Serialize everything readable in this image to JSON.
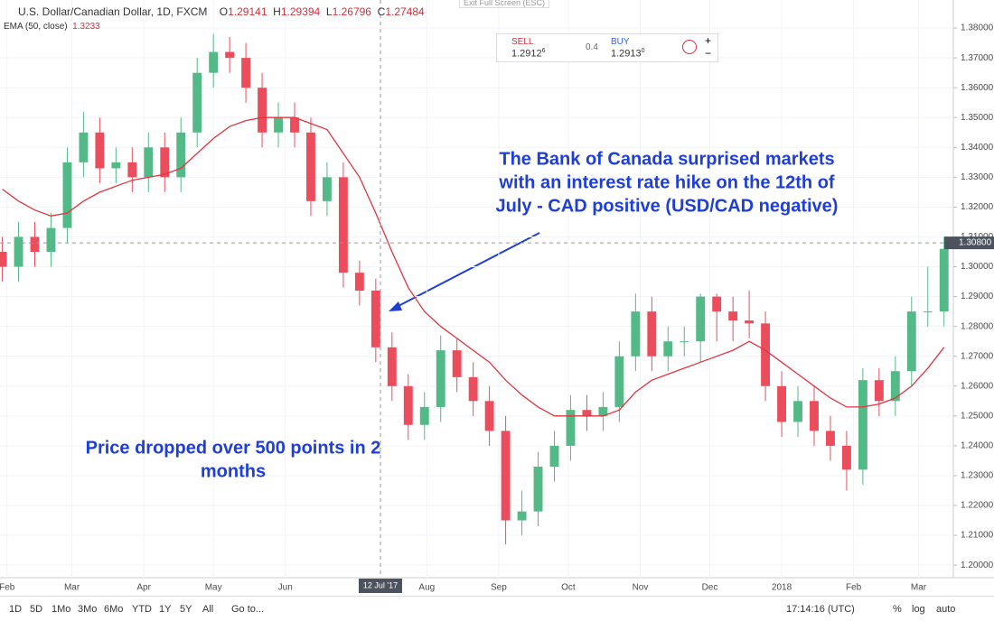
{
  "header": {
    "symbol": "U.S. Dollar/Canadian Dollar, 1D, FXCM",
    "o_label": "O",
    "o": "1.29141",
    "h_label": "H",
    "h": "1.29394",
    "l_label": "L",
    "l": "1.26796",
    "c_label": "C",
    "c": "1.27484",
    "indicator": "EMA (50, close)",
    "indicator_value": "1.3233",
    "exit": "Exit Full Screen (ESC)"
  },
  "trade": {
    "sell_label": "SELL",
    "sell_price": "1.2912",
    "sell_pip": "6",
    "spread": "0.4",
    "buy_label": "BUY",
    "buy_price": "1.2913",
    "buy_pip": "0",
    "plus": "+",
    "minus": "−"
  },
  "toolbar": {
    "ranges": [
      "1D",
      "5D",
      "1Mo",
      "3Mo",
      "6Mo",
      "YTD",
      "1Y",
      "5Y",
      "All"
    ],
    "goto": "Go to...",
    "clock": "17:14:16 (UTC)",
    "percent": "%",
    "log": "log",
    "auto": "auto"
  },
  "chart_data": {
    "type": "candlestick",
    "x": [
      "2017-01-30",
      "2017-02-06",
      "2017-02-13",
      "2017-02-20",
      "2017-02-27",
      "2017-03-06",
      "2017-03-13",
      "2017-03-20",
      "2017-03-27",
      "2017-04-03",
      "2017-04-10",
      "2017-04-17",
      "2017-04-24",
      "2017-05-01",
      "2017-05-08",
      "2017-05-15",
      "2017-05-22",
      "2017-05-29",
      "2017-06-05",
      "2017-06-12",
      "2017-06-19",
      "2017-06-26",
      "2017-07-03",
      "2017-07-10",
      "2017-07-17",
      "2017-07-24",
      "2017-07-31",
      "2017-08-07",
      "2017-08-14",
      "2017-08-21",
      "2017-08-28",
      "2017-09-04",
      "2017-09-11",
      "2017-09-18",
      "2017-09-25",
      "2017-10-02",
      "2017-10-09",
      "2017-10-16",
      "2017-10-23",
      "2017-10-30",
      "2017-11-06",
      "2017-11-13",
      "2017-11-20",
      "2017-11-27",
      "2017-12-04",
      "2017-12-11",
      "2017-12-18",
      "2017-12-25",
      "2018-01-01",
      "2018-01-08",
      "2018-01-15",
      "2018-01-22",
      "2018-01-29",
      "2018-02-05",
      "2018-02-12",
      "2018-02-19",
      "2018-02-26",
      "2018-03-05",
      "2018-03-12"
    ],
    "open": [
      1.305,
      1.3,
      1.31,
      1.305,
      1.313,
      1.335,
      1.345,
      1.333,
      1.335,
      1.33,
      1.34,
      1.33,
      1.345,
      1.365,
      1.372,
      1.37,
      1.36,
      1.345,
      1.35,
      1.345,
      1.322,
      1.33,
      1.298,
      1.292,
      1.273,
      1.26,
      1.247,
      1.253,
      1.272,
      1.263,
      1.255,
      1.245,
      1.215,
      1.218,
      1.233,
      1.24,
      1.252,
      1.25,
      1.253,
      1.27,
      1.285,
      1.27,
      1.275,
      1.275,
      1.29,
      1.285,
      1.282,
      1.281,
      1.26,
      1.248,
      1.255,
      1.245,
      1.24,
      1.232,
      1.262,
      1.255,
      1.265,
      1.285,
      1.285
    ],
    "high": [
      1.31,
      1.315,
      1.315,
      1.318,
      1.34,
      1.352,
      1.35,
      1.34,
      1.34,
      1.345,
      1.345,
      1.35,
      1.37,
      1.378,
      1.377,
      1.375,
      1.365,
      1.355,
      1.355,
      1.35,
      1.335,
      1.335,
      1.302,
      1.296,
      1.278,
      1.264,
      1.258,
      1.277,
      1.276,
      1.268,
      1.26,
      1.25,
      1.225,
      1.238,
      1.245,
      1.257,
      1.257,
      1.258,
      1.275,
      1.291,
      1.29,
      1.28,
      1.28,
      1.291,
      1.291,
      1.29,
      1.292,
      1.285,
      1.265,
      1.26,
      1.26,
      1.25,
      1.245,
      1.266,
      1.266,
      1.27,
      1.29,
      1.3,
      1.31
    ],
    "low": [
      1.295,
      1.295,
      1.3,
      1.3,
      1.308,
      1.33,
      1.328,
      1.328,
      1.325,
      1.325,
      1.325,
      1.325,
      1.34,
      1.36,
      1.365,
      1.355,
      1.34,
      1.34,
      1.34,
      1.317,
      1.317,
      1.293,
      1.287,
      1.268,
      1.255,
      1.242,
      1.242,
      1.248,
      1.258,
      1.25,
      1.24,
      1.207,
      1.21,
      1.213,
      1.228,
      1.235,
      1.245,
      1.245,
      1.248,
      1.265,
      1.265,
      1.265,
      1.27,
      1.268,
      1.275,
      1.275,
      1.276,
      1.255,
      1.243,
      1.243,
      1.24,
      1.235,
      1.225,
      1.227,
      1.25,
      1.25,
      1.26,
      1.28,
      1.28
    ],
    "close": [
      1.3,
      1.31,
      1.305,
      1.313,
      1.335,
      1.345,
      1.333,
      1.335,
      1.33,
      1.34,
      1.33,
      1.345,
      1.365,
      1.372,
      1.37,
      1.36,
      1.345,
      1.35,
      1.345,
      1.322,
      1.33,
      1.298,
      1.292,
      1.273,
      1.26,
      1.247,
      1.253,
      1.272,
      1.263,
      1.255,
      1.245,
      1.215,
      1.218,
      1.233,
      1.24,
      1.252,
      1.25,
      1.253,
      1.27,
      1.285,
      1.27,
      1.275,
      1.275,
      1.29,
      1.285,
      1.282,
      1.281,
      1.26,
      1.248,
      1.255,
      1.245,
      1.24,
      1.232,
      1.262,
      1.255,
      1.265,
      1.285,
      1.285,
      1.306
    ],
    "up_color": "#53b987",
    "down_color": "#eb4d5c",
    "ema": {
      "name": "EMA (50, close)",
      "color": "#e0353f",
      "values": [
        1.326,
        1.322,
        1.319,
        1.317,
        1.318,
        1.322,
        1.325,
        1.327,
        1.329,
        1.33,
        1.331,
        1.333,
        1.338,
        1.343,
        1.347,
        1.349,
        1.35,
        1.35,
        1.35,
        1.348,
        1.346,
        1.338,
        1.33,
        1.318,
        1.305,
        1.293,
        1.285,
        1.28,
        1.276,
        1.272,
        1.268,
        1.262,
        1.257,
        1.253,
        1.25,
        1.25,
        1.25,
        1.25,
        1.252,
        1.258,
        1.262,
        1.264,
        1.266,
        1.268,
        1.27,
        1.272,
        1.275,
        1.272,
        1.268,
        1.264,
        1.26,
        1.256,
        1.253,
        1.253,
        1.254,
        1.256,
        1.26,
        1.266,
        1.273
      ]
    },
    "xlim": [
      "2017-01-29",
      "2018-03-16"
    ],
    "xticks": [
      {
        "value": "2017-02-01",
        "label": "Feb"
      },
      {
        "value": "2017-03-01",
        "label": "Mar"
      },
      {
        "value": "2017-04-01",
        "label": "Apr"
      },
      {
        "value": "2017-05-01",
        "label": "May"
      },
      {
        "value": "2017-06-01",
        "label": "Jun"
      },
      {
        "value": "2017-08-01",
        "label": "Aug"
      },
      {
        "value": "2017-09-01",
        "label": "Sep"
      },
      {
        "value": "2017-10-01",
        "label": "Oct"
      },
      {
        "value": "2017-11-01",
        "label": "Nov"
      },
      {
        "value": "2017-12-01",
        "label": "Dec"
      },
      {
        "value": "2018-01-01",
        "label": "2018"
      },
      {
        "value": "2018-02-01",
        "label": "Feb"
      },
      {
        "value": "2018-03-01",
        "label": "Mar"
      }
    ],
    "ylim": [
      1.1958,
      1.3894
    ],
    "yticks": [
      {
        "value": 1.2,
        "label": "1.20000"
      },
      {
        "value": 1.21,
        "label": "1.21000"
      },
      {
        "value": 1.22,
        "label": "1.22000"
      },
      {
        "value": 1.23,
        "label": "1.23000"
      },
      {
        "value": 1.24,
        "label": "1.24000"
      },
      {
        "value": 1.25,
        "label": "1.25000"
      },
      {
        "value": 1.26,
        "label": "1.26000"
      },
      {
        "value": 1.27,
        "label": "1.27000"
      },
      {
        "value": 1.28,
        "label": "1.28000"
      },
      {
        "value": 1.29,
        "label": "1.29000"
      },
      {
        "value": 1.3,
        "label": "1.30000"
      },
      {
        "value": 1.31,
        "label": "1.31000"
      },
      {
        "value": 1.32,
        "label": "1.32000"
      },
      {
        "value": 1.33,
        "label": "1.33000"
      },
      {
        "value": 1.34,
        "label": "1.34000"
      },
      {
        "value": 1.35,
        "label": "1.35000"
      },
      {
        "value": 1.36,
        "label": "1.36000"
      },
      {
        "value": 1.37,
        "label": "1.37000"
      },
      {
        "value": 1.38,
        "label": "1.38000"
      }
    ],
    "crosshair": {
      "x": {
        "value": "2017-07-12",
        "label": "12 Jul '17"
      },
      "y": {
        "value": 1.308,
        "label": "1.30800"
      }
    },
    "annotations": [
      {
        "lines": [
          "The Bank of Canada surprised markets",
          "with an interest rate hike on the 12th of",
          "July - CAD positive (USD/CAD negative)"
        ]
      },
      {
        "lines": [
          "Price dropped over 500 points in 2",
          "months"
        ]
      }
    ]
  }
}
